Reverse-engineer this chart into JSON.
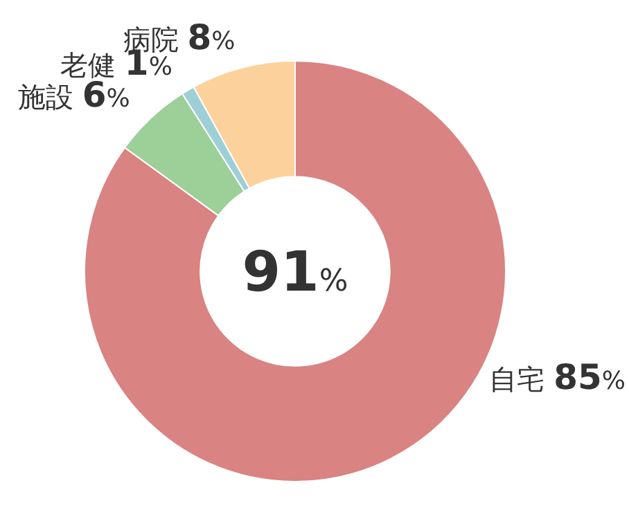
{
  "chart_data": {
    "type": "donut",
    "categories": [
      "自宅",
      "施設",
      "老健",
      "病院"
    ],
    "values": [
      85,
      6,
      1,
      8
    ],
    "colors": [
      "#d98383",
      "#9dcf98",
      "#9fcfd6",
      "#fdd19b"
    ],
    "value_labels": [
      "85%",
      "6%",
      "1%",
      "8%"
    ],
    "annotations": [
      "91%"
    ]
  }
}
